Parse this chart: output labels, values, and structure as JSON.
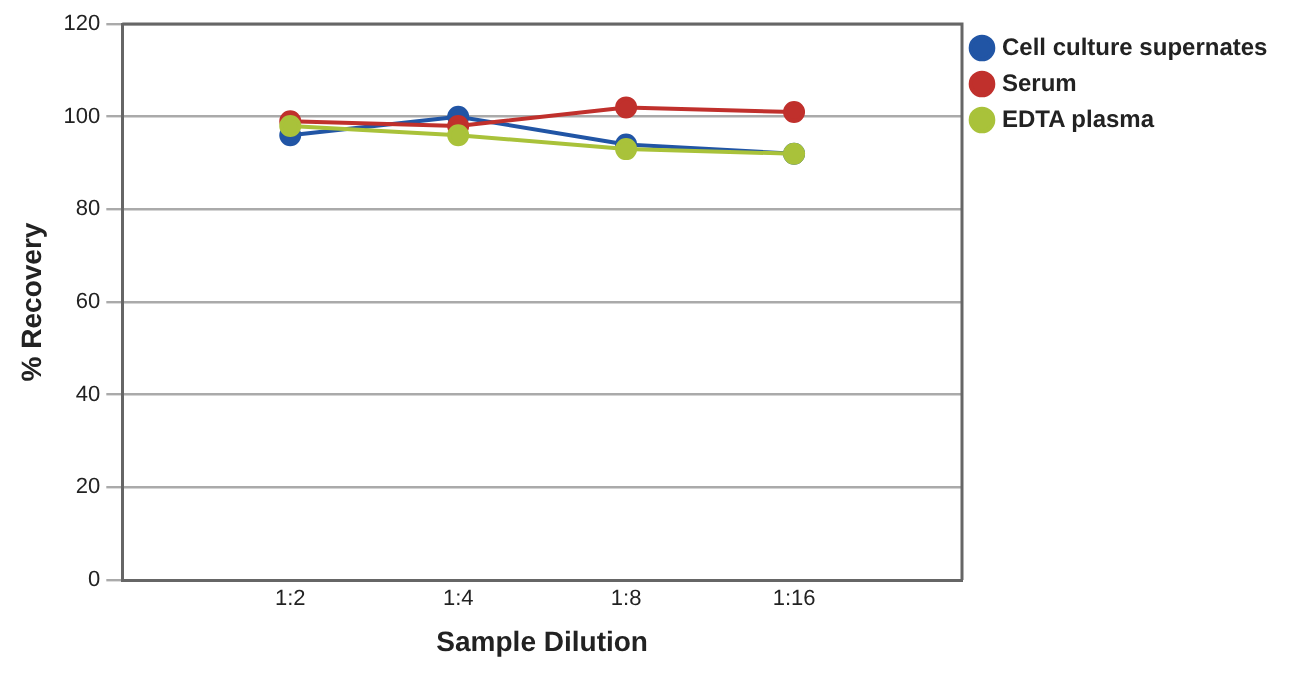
{
  "chart_data": {
    "type": "line",
    "xlabel": "Sample Dilution",
    "ylabel": "% Recovery",
    "categories": [
      "1:2",
      "1:4",
      "1:8",
      "1:16"
    ],
    "series": [
      {
        "name": "Cell culture supernates",
        "color": "#2155a5",
        "values": [
          96,
          100,
          94,
          92
        ]
      },
      {
        "name": "Serum",
        "color": "#c0302c",
        "values": [
          99,
          98,
          102,
          101
        ]
      },
      {
        "name": "EDTA plasma",
        "color": "#a9c23a",
        "values": [
          98,
          96,
          93,
          92
        ]
      }
    ],
    "ylim": [
      0,
      120
    ],
    "yticks": [
      0,
      20,
      40,
      60,
      80,
      100,
      120
    ],
    "grid": "y",
    "legend": "right",
    "marker": "circle",
    "line_style": "solid"
  }
}
